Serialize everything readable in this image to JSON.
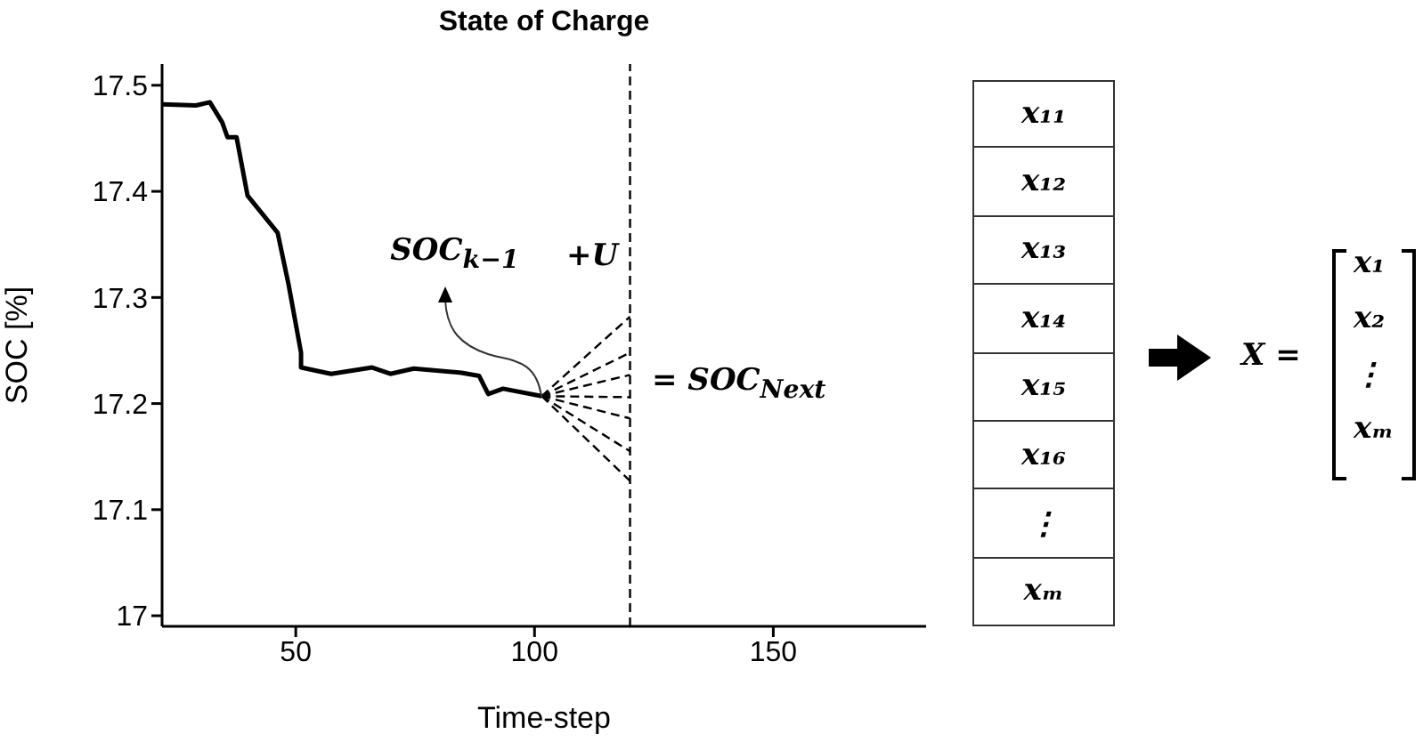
{
  "chart_data": [
    {
      "type": "line",
      "title": "State of Charge",
      "xlabel": "Time-step",
      "ylabel": "SOC [%]",
      "xlim": [
        22,
        182
      ],
      "xticks": [
        50,
        100,
        150
      ],
      "ylim": [
        16.99,
        17.52
      ],
      "yticks": [
        17,
        17.1,
        17.2,
        17.3,
        17.4,
        17.5
      ],
      "series": [
        {
          "color": "#000000",
          "x": [
            22,
            29.1,
            32,
            34.6,
            35.7,
            37.6,
            39.9,
            46.2,
            48.5,
            51.1,
            51.1,
            57.4,
            66,
            69.8,
            74.7,
            84.7,
            88.4,
            90.3,
            93.4,
            101.5
          ],
          "values": [
            17.482,
            17.481,
            17.484,
            17.465,
            17.451,
            17.451,
            17.396,
            17.361,
            17.312,
            17.248,
            17.234,
            17.228,
            17.234,
            17.228,
            17.233,
            17.229,
            17.226,
            17.209,
            17.214,
            17.207
          ]
        },
        {
          "color": "#000000",
          "line_style": "dashed",
          "x": [
            101.5,
            120
          ],
          "values": [
            17.207,
            17.282
          ]
        },
        {
          "color": "#000000",
          "line_style": "dashed",
          "x": [
            101.5,
            120
          ],
          "values": [
            17.207,
            17.248
          ]
        },
        {
          "color": "#000000",
          "line_style": "dashed",
          "x": [
            101.5,
            120
          ],
          "values": [
            17.207,
            17.227
          ]
        },
        {
          "color": "#000000",
          "line_style": "dashed",
          "x": [
            101.5,
            120
          ],
          "values": [
            17.207,
            17.206
          ]
        },
        {
          "color": "#000000",
          "line_style": "dashed",
          "x": [
            101.5,
            120
          ],
          "values": [
            17.207,
            17.186
          ]
        },
        {
          "color": "#000000",
          "line_style": "dashed",
          "x": [
            101.5,
            120
          ],
          "values": [
            17.207,
            17.155
          ]
        },
        {
          "color": "#000000",
          "line_style": "dashed",
          "x": [
            101.5,
            120
          ],
          "values": [
            17.207,
            17.127
          ]
        }
      ],
      "ref_lines": [
        {
          "axis": "x",
          "value": 120,
          "color": "#000000",
          "line_style": "dashed"
        }
      ],
      "annotations": [
        {
          "text": "SOC$_{k−1}$",
          "x": 101.5,
          "y": 17.207
        },
        "+U",
        "= SOC$_{Next}$"
      ]
    },
    {
      "type": "other",
      "annotations": [
        "x₁₁",
        "x₁₂",
        "x₁₃",
        "x₁₄",
        "x₁₅",
        "x₁₆",
        "⋮",
        "xₘ",
        "X =",
        "x₁",
        "x₂",
        "⋮",
        "xₘ"
      ]
    }
  ]
}
